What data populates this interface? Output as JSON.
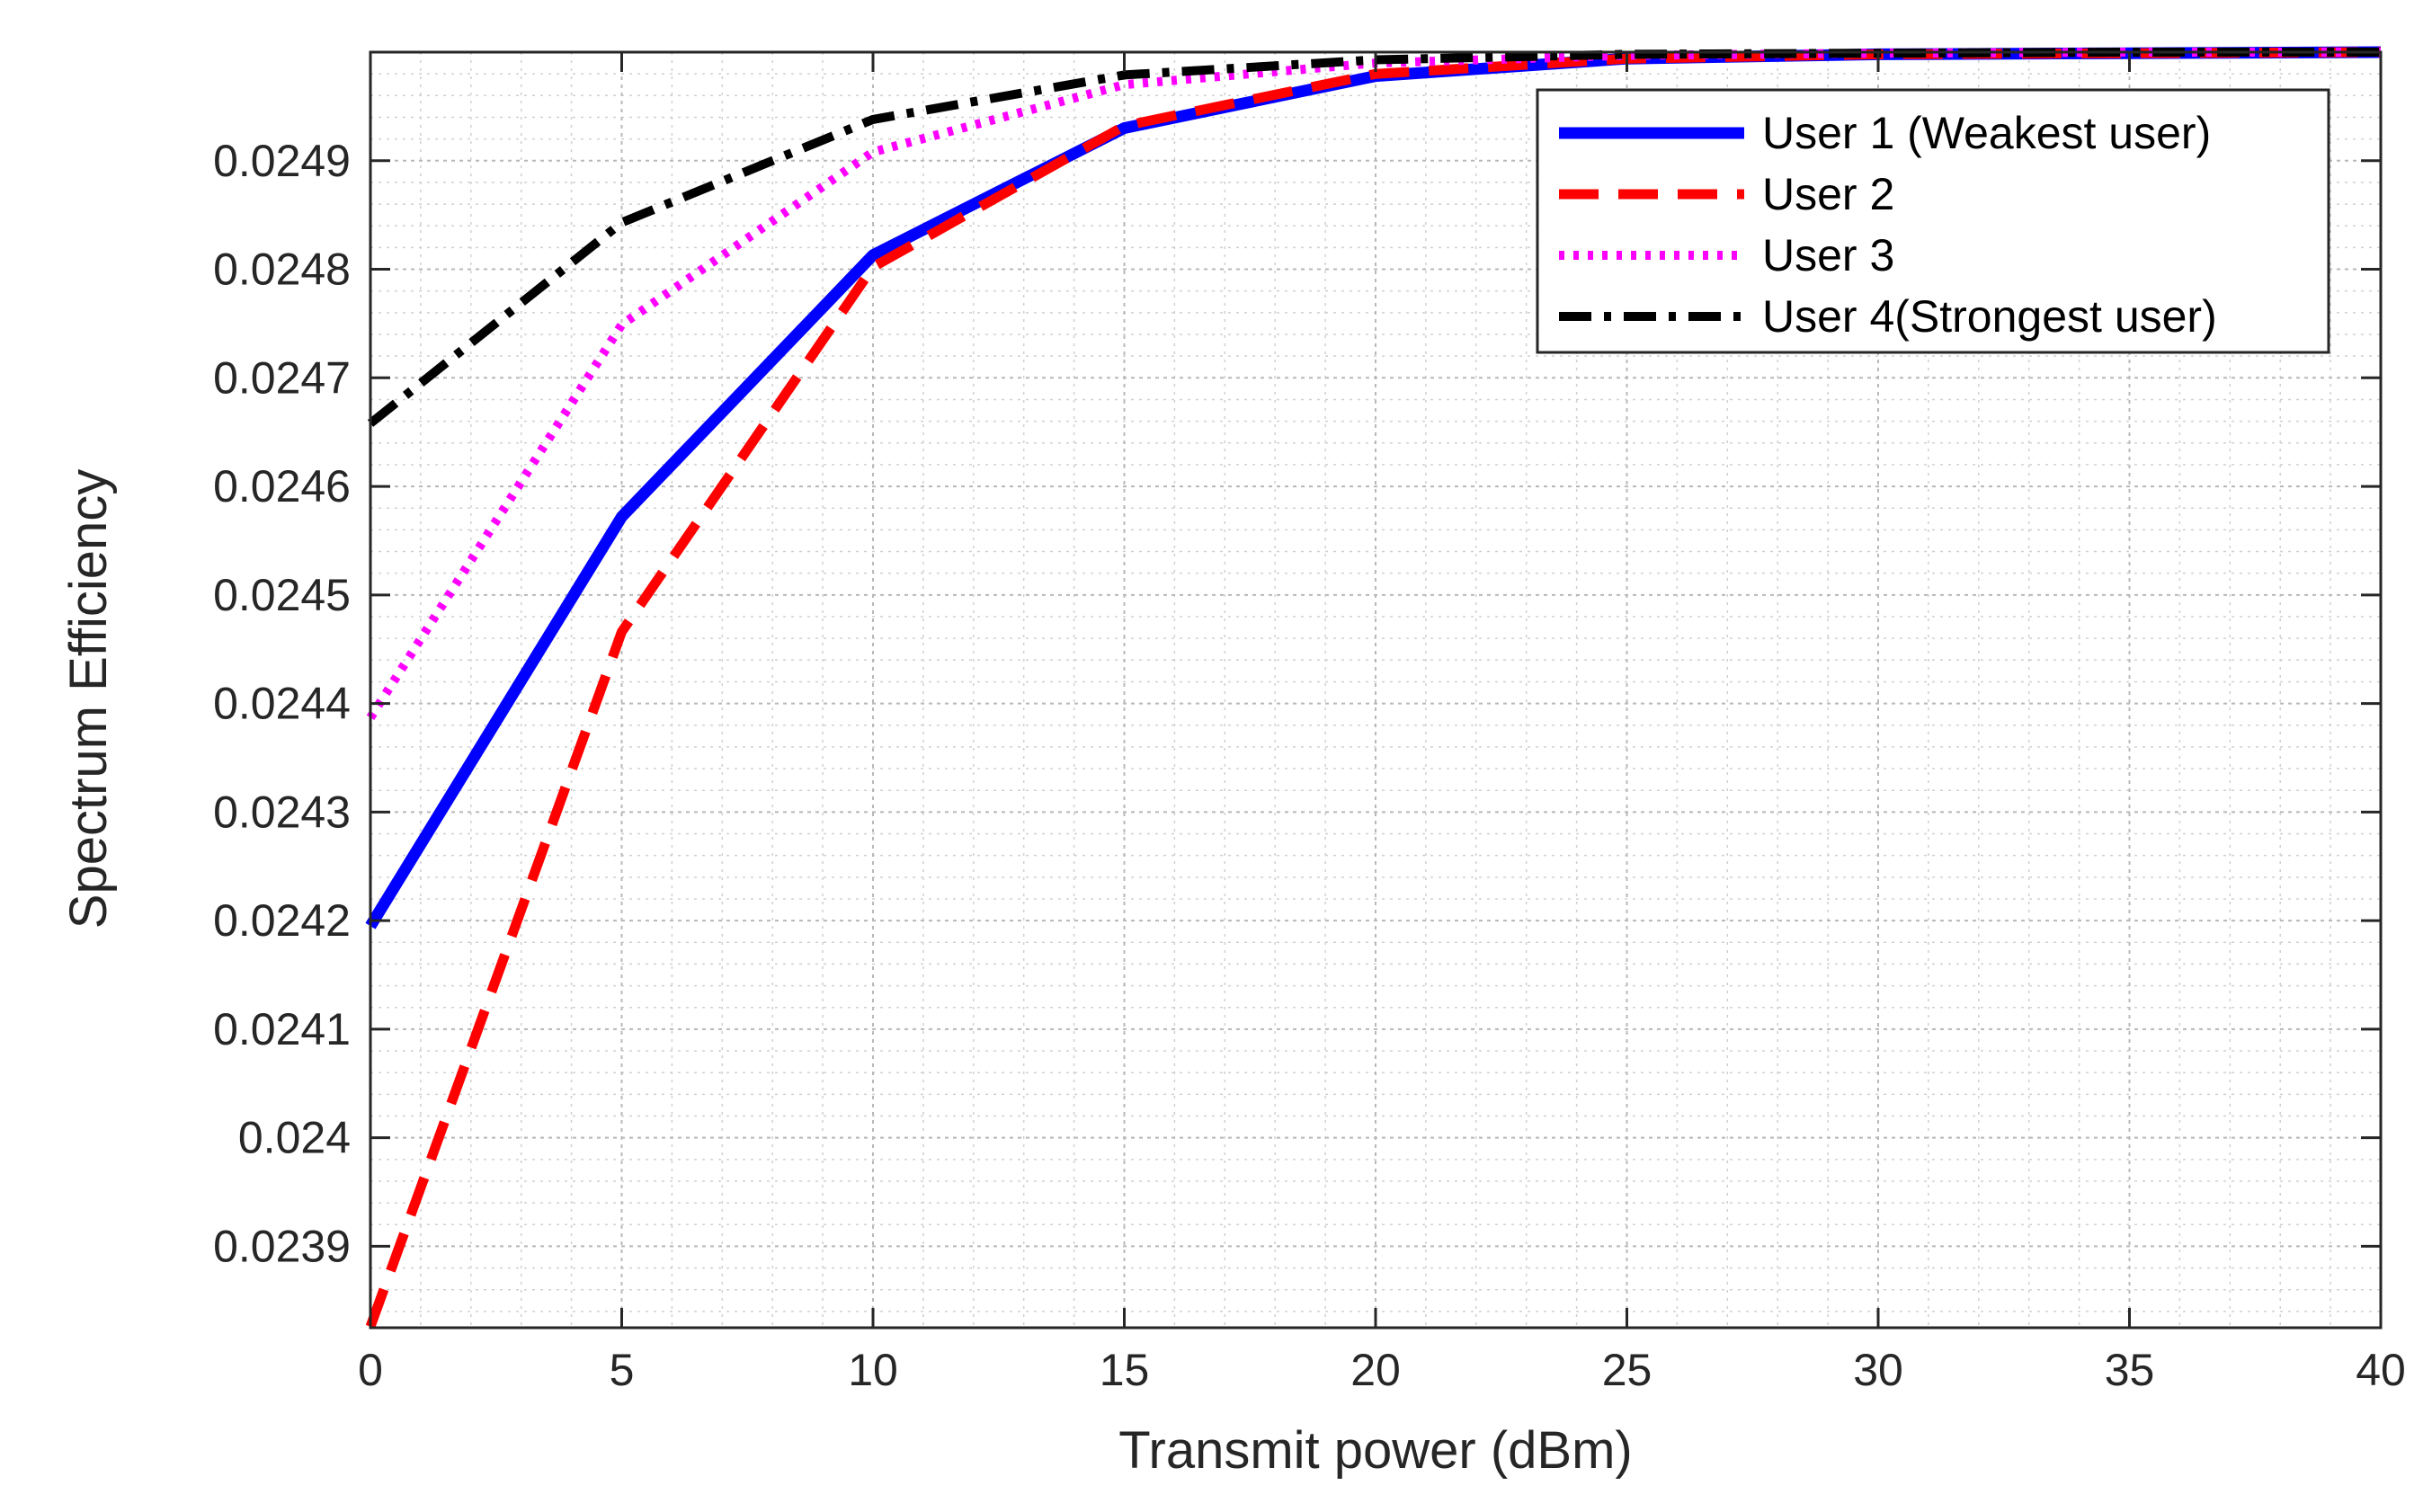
{
  "chart_data": {
    "type": "line",
    "title": "",
    "xlabel": "Transmit power (dBm)",
    "ylabel": "Spectrum Efficiency",
    "xlim": [
      0,
      40
    ],
    "ylim": [
      0.023825,
      0.025
    ],
    "xticks": [
      0,
      5,
      10,
      15,
      20,
      25,
      30,
      35,
      40
    ],
    "xtick_labels": [
      "0",
      "5",
      "10",
      "15",
      "20",
      "25",
      "30",
      "35",
      "40"
    ],
    "yticks": [
      0.0239,
      0.024,
      0.0241,
      0.0242,
      0.0243,
      0.0244,
      0.0245,
      0.0246,
      0.0247,
      0.0248,
      0.0249
    ],
    "ytick_labels": [
      "0.0239",
      "0.024",
      "0.0241",
      "0.0242",
      "0.0243",
      "0.0244",
      "0.0245",
      "0.0246",
      "0.0247",
      "0.0248",
      "0.0249"
    ],
    "grid": true,
    "minor_grid": true,
    "legend_position": "top-right",
    "x": [
      0,
      5,
      10,
      15,
      20,
      25,
      30,
      35,
      40
    ],
    "series": [
      {
        "name": "User 1 (Weakest user)",
        "color": "#0000ff",
        "style": "solid",
        "values": [
          0.024195,
          0.024572,
          0.024813,
          0.02493,
          0.024978,
          0.024994,
          0.024998,
          0.024999,
          0.025
        ]
      },
      {
        "name": "User 2",
        "color": "#ff0000",
        "style": "dashed",
        "values": [
          0.023826,
          0.024466,
          0.024802,
          0.024932,
          0.02498,
          0.024994,
          0.024998,
          0.024999,
          0.025
        ]
      },
      {
        "name": "User 3",
        "color": "#ff00ff",
        "style": "dotted",
        "values": [
          0.024387,
          0.024749,
          0.024908,
          0.02497,
          0.02499,
          0.024997,
          0.024999,
          0.025,
          0.025
        ]
      },
      {
        "name": "User 4(Strongest user)",
        "color": "#000000",
        "style": "dashdot",
        "values": [
          0.024658,
          0.024843,
          0.024938,
          0.024979,
          0.024993,
          0.024998,
          0.024999,
          0.025,
          0.025
        ]
      }
    ]
  }
}
